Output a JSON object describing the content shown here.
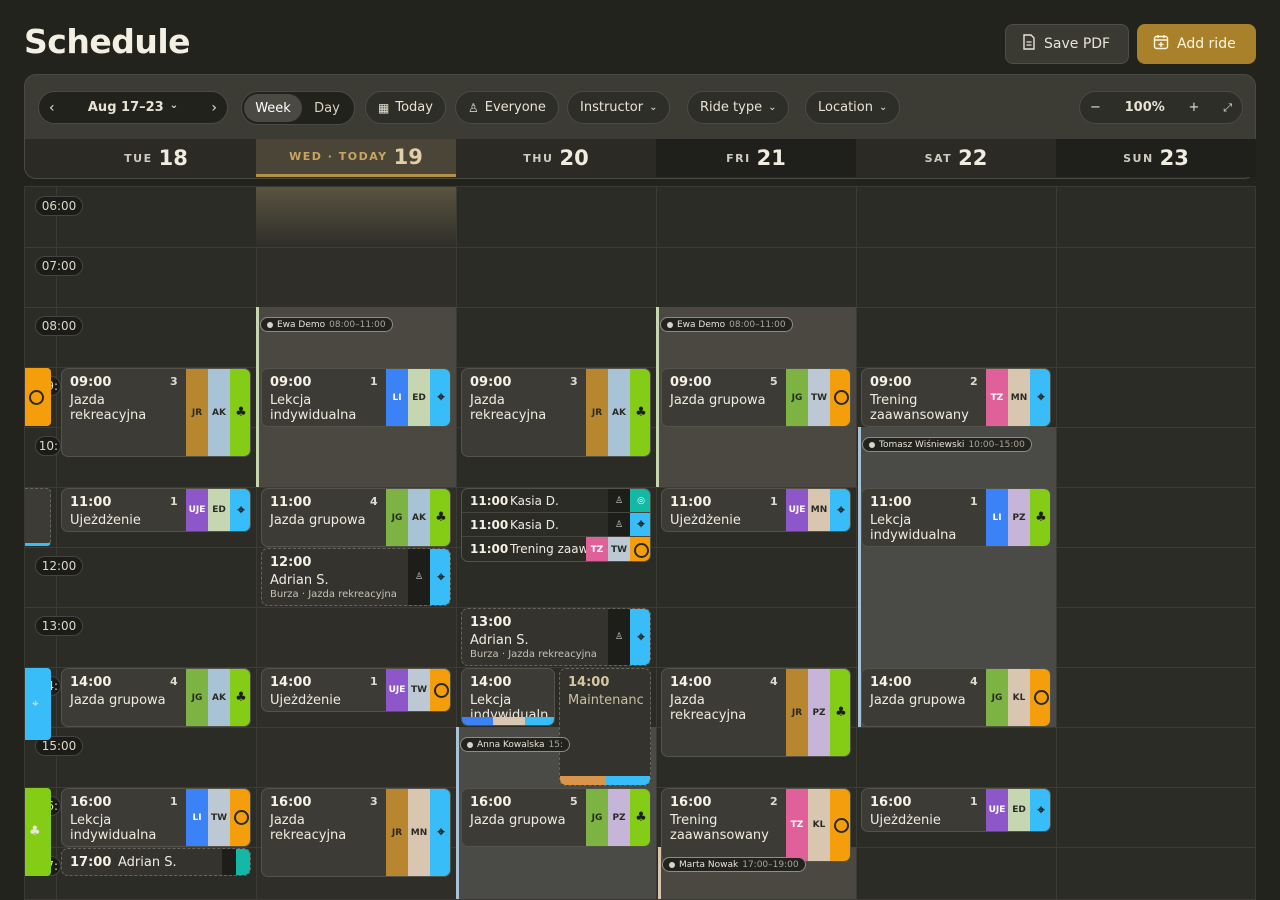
{
  "header": {
    "title": "Schedule",
    "save_pdf": "Save PDF",
    "add_ride": "Add ride"
  },
  "toolbar": {
    "range": "Aug 17–23",
    "week": "Week",
    "day": "Day",
    "today": "Today",
    "everyone": "Everyone",
    "instructor": "Instructor",
    "ride_type": "Ride type",
    "location": "Location",
    "zoom": "100%"
  },
  "days": [
    {
      "dn": "TUE",
      "dd": "18"
    },
    {
      "dn": "WED · TODAY",
      "dd": "19"
    },
    {
      "dn": "THU",
      "dd": "20"
    },
    {
      "dn": "FRI",
      "dd": "21"
    },
    {
      "dn": "SAT",
      "dd": "22"
    },
    {
      "dn": "SUN",
      "dd": "23"
    }
  ],
  "times": [
    "06:00",
    "07:00",
    "08:00",
    "12:00",
    "13:00",
    "15:00"
  ],
  "times_partial": [
    "9:",
    "10:",
    "4:",
    "6:",
    "7:"
  ],
  "tags": [
    {
      "name": "Ewa Demo",
      "time": "08:00–11:00"
    },
    {
      "name": "Ewa Demo",
      "time": "08:00–11:00"
    },
    {
      "name": "Tomasz Wiśniewski",
      "time": "10:00–15:00"
    },
    {
      "name": "Anna Kowalska",
      "time": "15:"
    },
    {
      "name": "Marta Nowak",
      "time": "17:00–19:00"
    }
  ],
  "events": [
    {
      "time": "09:00",
      "count": "3",
      "name": "Jazda",
      "name2": "rekreacyjna",
      "tags": [
        "JR",
        "AK"
      ]
    },
    {
      "time": "11:00",
      "count": "1",
      "name": "Ujeżdżenie",
      "tags": [
        "UJE",
        "ED"
      ]
    },
    {
      "time": "14:00",
      "count": "4",
      "name": "Jazda grupowa",
      "tags": [
        "JG",
        "AK"
      ]
    },
    {
      "time": "16:00",
      "count": "1",
      "name": "Lekcja",
      "name2": "indywidualna",
      "tags": [
        "LI",
        "TW"
      ]
    },
    {
      "time": "17:00",
      "name": "Adrian S."
    },
    {
      "time": "09:00",
      "count": "1",
      "name": "Lekcja",
      "name2": "indywidualna",
      "tags": [
        "LI",
        "ED"
      ]
    },
    {
      "time": "11:00",
      "count": "4",
      "name": "Jazda grupowa",
      "tags": [
        "JG",
        "AK"
      ]
    },
    {
      "time": "12:00",
      "name": "Adrian S.",
      "sub": "Burza · Jazda rekreacyjna"
    },
    {
      "time": "14:00",
      "count": "1",
      "name": "Ujeżdżenie",
      "tags": [
        "UJE",
        "TW"
      ]
    },
    {
      "time": "16:00",
      "count": "3",
      "name": "Jazda",
      "name2": "rekreacyjna",
      "tags": [
        "JR",
        "MN"
      ]
    },
    {
      "time": "09:00",
      "count": "3",
      "name": "Jazda",
      "name2": "rekreacyjna",
      "tags": [
        "JR",
        "AK"
      ]
    },
    {
      "time": "11:00",
      "name": "Kasia D."
    },
    {
      "time": "11:00",
      "name": "Kasia D."
    },
    {
      "time": "11:00",
      "name": "Trening zaaw",
      "tags": [
        "TZ",
        "TW"
      ]
    },
    {
      "time": "13:00",
      "name": "Adrian S.",
      "sub": "Burza · Jazda rekreacyjna"
    },
    {
      "time": "14:00",
      "name": "Lekcja",
      "name2": "indywidualn"
    },
    {
      "time": "14:00",
      "name": "Maintenanc"
    },
    {
      "time": "16:00",
      "count": "5",
      "name": "Jazda grupowa",
      "tags": [
        "JG",
        "PZ"
      ]
    },
    {
      "time": "09:00",
      "count": "5",
      "name": "Jazda grupowa",
      "tags": [
        "JG",
        "TW"
      ]
    },
    {
      "time": "11:00",
      "count": "1",
      "name": "Ujeżdżenie",
      "tags": [
        "UJE",
        "MN"
      ]
    },
    {
      "time": "14:00",
      "count": "4",
      "name": "Jazda",
      "name2": "rekreacyjna",
      "tags": [
        "JR",
        "PZ"
      ]
    },
    {
      "time": "16:00",
      "count": "2",
      "name": "Trening",
      "name2": "zaawansowany",
      "tags": [
        "TZ",
        "KL"
      ]
    },
    {
      "time": "09:00",
      "count": "2",
      "name": "Trening",
      "name2": "zaawansowany",
      "tags": [
        "TZ",
        "MN"
      ]
    },
    {
      "time": "11:00",
      "count": "1",
      "name": "Lekcja",
      "name2": "indywidualna",
      "tags": [
        "LI",
        "PZ"
      ]
    },
    {
      "time": "14:00",
      "count": "4",
      "name": "Jazda grupowa",
      "tags": [
        "JG",
        "KL"
      ]
    },
    {
      "time": "16:00",
      "count": "1",
      "name": "Ujeżdżenie",
      "tags": [
        "UJE",
        "ED"
      ]
    }
  ],
  "colors": {
    "bg": "#23231e",
    "accent": "#a9812a",
    "JR": "#b8862e",
    "AK": "#a9c3d6",
    "ED": "#c5d6b0",
    "JG": "#7cb342",
    "UJE": "#8e57c9",
    "LI": "#3b82f6",
    "TW": "#bcc9d4",
    "MN": "#d9c6b0",
    "TZ": "#e0609a",
    "PZ": "#c6b4d9",
    "KL": "#d9c6b0",
    "orange": "#f59e0b",
    "cyan": "#38bdf8",
    "lime": "#84cc16"
  }
}
